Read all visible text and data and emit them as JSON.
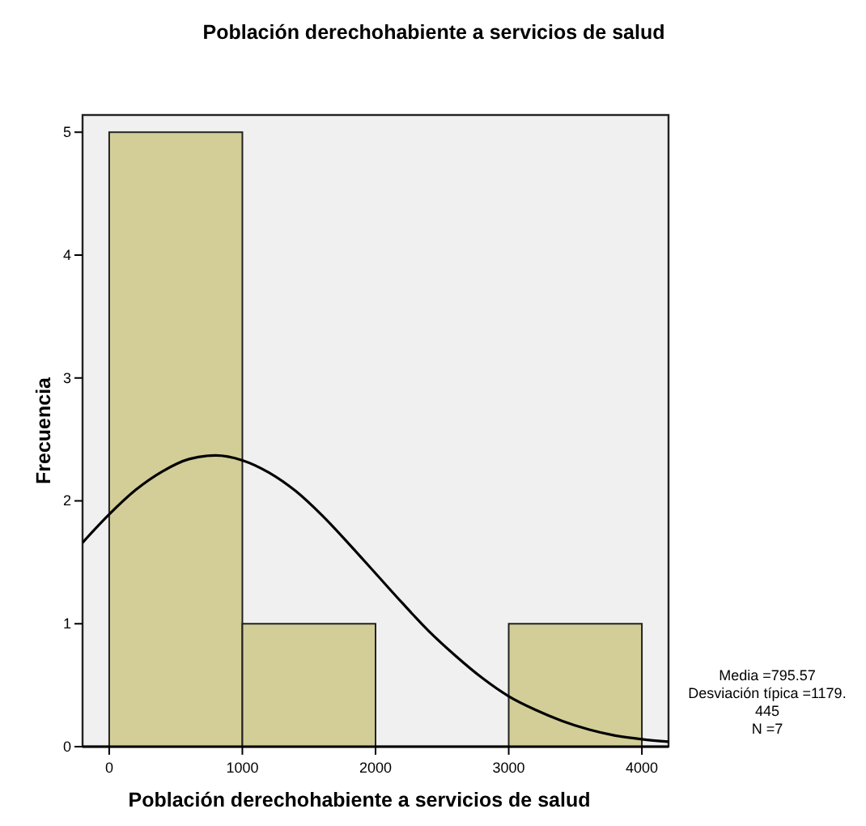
{
  "chart_data": {
    "type": "histogram",
    "title": "Población derechohabiente a servicios de salud",
    "xlabel": "Población derechohabiente a servicios de salud",
    "ylabel": "Frecuencia",
    "bins": [
      0,
      1000,
      2000,
      3000,
      4000
    ],
    "values": [
      5,
      1,
      0,
      1
    ],
    "color": "#d3ce98",
    "series": [
      {
        "type": "line",
        "color": "#000000",
        "x": [
          -200,
          0,
          200,
          400,
          600,
          800,
          1000,
          1200,
          1400,
          1600,
          1800,
          2000,
          2200,
          2400,
          2600,
          2800,
          3000,
          3200,
          3400,
          3600,
          3800,
          4000,
          4200
        ],
        "values": [
          1.66,
          1.89,
          2.09,
          2.24,
          2.34,
          2.37,
          2.33,
          2.23,
          2.08,
          1.88,
          1.65,
          1.41,
          1.17,
          0.94,
          0.74,
          0.56,
          0.41,
          0.3,
          0.21,
          0.14,
          0.09,
          0.06,
          0.04
        ]
      }
    ],
    "xlim": [
      -200,
      4200
    ],
    "ylim": [
      0,
      5.14
    ],
    "xticks": [
      0,
      1000,
      2000,
      3000,
      4000
    ],
    "yticks": [
      0,
      1,
      2,
      3,
      4,
      5
    ],
    "grid": false,
    "annotations": [
      "Media =795.57",
      "Desviación típica =1179.",
      "445",
      "N =7"
    ]
  }
}
